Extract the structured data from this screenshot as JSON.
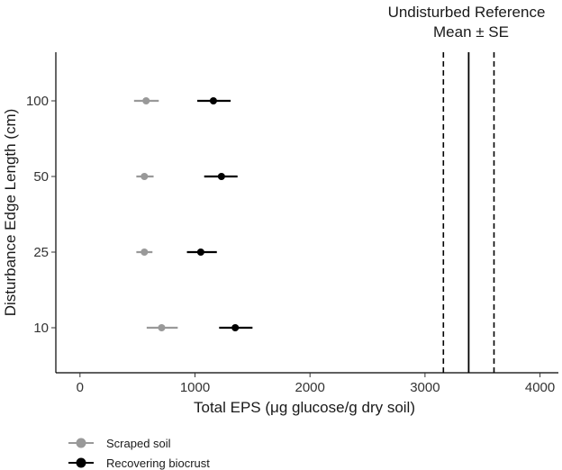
{
  "chart_data": {
    "type": "scatter",
    "xlabel": "Total EPS (μg glucose/g dry soil)",
    "ylabel": "Disturbance Edge Length (cm)",
    "xlim": [
      -210,
      4160
    ],
    "x_ticks": [
      0,
      1000,
      2000,
      3000,
      4000
    ],
    "categories": [
      "10",
      "25",
      "50",
      "100"
    ],
    "series": [
      {
        "name": "Scraped soil",
        "color": "#999999",
        "points": [
          {
            "category": "10",
            "mean": 710,
            "low": 580,
            "high": 850
          },
          {
            "category": "25",
            "mean": 560,
            "low": 490,
            "high": 630
          },
          {
            "category": "50",
            "mean": 560,
            "low": 490,
            "high": 640
          },
          {
            "category": "100",
            "mean": 575,
            "low": 470,
            "high": 685
          }
        ]
      },
      {
        "name": "Recovering biocrust",
        "color": "#000000",
        "points": [
          {
            "category": "10",
            "mean": 1350,
            "low": 1210,
            "high": 1500
          },
          {
            "category": "25",
            "mean": 1050,
            "low": 930,
            "high": 1190
          },
          {
            "category": "50",
            "mean": 1230,
            "low": 1080,
            "high": 1370
          },
          {
            "category": "100",
            "mean": 1160,
            "low": 1020,
            "high": 1310
          }
        ]
      }
    ],
    "reference": {
      "title_lines": [
        "Undisturbed Reference",
        "Mean  ± SE"
      ],
      "mean": 3380,
      "se_low": 3160,
      "se_high": 3600
    },
    "grid": false,
    "legend_position": "bottom-left"
  }
}
